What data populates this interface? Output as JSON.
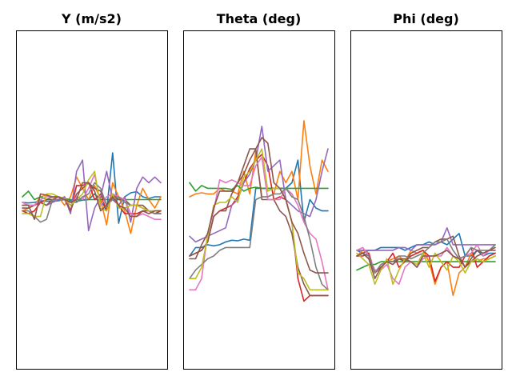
{
  "chart_data": [
    {
      "type": "line",
      "title": "Y (m/s2)",
      "x": [
        0,
        1,
        2,
        3,
        4,
        5,
        6,
        7,
        8,
        9,
        10,
        11,
        12,
        13,
        14,
        15,
        16,
        17,
        18,
        19,
        20,
        21,
        22,
        23
      ],
      "ylim": [
        -3,
        3
      ],
      "series": [
        {
          "values": [
            -0.05,
            -0.06,
            -0.05,
            -0.02,
            -0.03,
            -0.03,
            -0.02,
            0.0,
            -0.02,
            -0.03,
            -0.01,
            0.0,
            0.1,
            0.0,
            -0.2,
            0.83,
            -0.42,
            0.05,
            0.12,
            0.14,
            0.05,
            0.02,
            0.05,
            0.05
          ]
        },
        {
          "values": [
            -0.2,
            -0.15,
            -0.1,
            0.05,
            0.08,
            0.04,
            0.05,
            -0.1,
            0.05,
            0.4,
            0.2,
            0.0,
            0.25,
            0.0,
            -0.45,
            0.3,
            0.05,
            -0.2,
            -0.6,
            -0.1,
            0.2,
            0.0,
            -0.15,
            0.05
          ]
        },
        {
          "values": [
            0.05,
            0.15,
            0.0,
            0.05,
            0.0,
            0.05,
            0.05,
            0.02,
            0.0,
            0.0,
            0.0,
            0.0,
            0.0,
            0.0,
            0.0,
            0.0,
            0.0,
            0.0,
            0.0,
            0.0,
            0.0,
            0.0,
            0.0,
            0.0
          ]
        },
        {
          "values": [
            -0.2,
            -0.25,
            -0.2,
            -0.05,
            0.0,
            0.0,
            0.0,
            0.05,
            -0.2,
            0.25,
            0.25,
            0.3,
            0.0,
            0.1,
            -0.2,
            0.1,
            -0.1,
            -0.25,
            -0.25,
            -0.25,
            -0.2,
            -0.2,
            -0.25,
            -0.2
          ]
        },
        {
          "values": [
            -0.1,
            -0.1,
            -0.1,
            -0.05,
            -0.1,
            -0.05,
            0.0,
            0.05,
            -0.25,
            0.5,
            0.7,
            -0.55,
            -0.15,
            0.05,
            0.5,
            0.0,
            -0.1,
            0.05,
            -0.4,
            0.2,
            0.4,
            0.3,
            0.4,
            0.3
          ]
        },
        {
          "values": [
            -0.15,
            -0.15,
            -0.1,
            -0.05,
            -0.1,
            0.0,
            0.05,
            0.0,
            -0.2,
            0.1,
            0.2,
            0.3,
            0.2,
            0.15,
            -0.1,
            0.1,
            0.0,
            0.0,
            -0.1,
            -0.1,
            -0.1,
            -0.2,
            -0.25,
            -0.25
          ]
        },
        {
          "values": [
            -0.05,
            -0.1,
            -0.1,
            0.0,
            0.05,
            0.05,
            0.05,
            0.0,
            -0.1,
            0.05,
            0.0,
            0.2,
            0.45,
            -0.1,
            0.05,
            0.1,
            0.05,
            0.0,
            -0.25,
            -0.3,
            -0.25,
            -0.3,
            -0.35,
            -0.35
          ]
        },
        {
          "values": [
            -0.2,
            -0.2,
            -0.3,
            -0.4,
            -0.35,
            0.0,
            0.0,
            0.0,
            -0.05,
            -0.05,
            0.05,
            0.1,
            0.3,
            0.2,
            -0.1,
            0.0,
            0.05,
            -0.05,
            -0.1,
            -0.1,
            -0.15,
            -0.2,
            -0.25,
            -0.25
          ]
        },
        {
          "values": [
            -0.25,
            -0.25,
            -0.3,
            -0.3,
            0.1,
            0.1,
            0.05,
            0.02,
            -0.1,
            0.0,
            0.1,
            0.35,
            0.5,
            -0.15,
            -0.2,
            0.1,
            -0.15,
            -0.15,
            -0.1,
            -0.1,
            -0.15,
            -0.2,
            -0.2,
            -0.2
          ]
        },
        {
          "values": [
            -0.1,
            -0.1,
            -0.35,
            0.1,
            0.08,
            0.05,
            0.05,
            0.0,
            -0.05,
            0.0,
            0.3,
            0.3,
            0.15,
            -0.2,
            -0.1,
            0.05,
            -0.1,
            -0.15,
            -0.3,
            -0.3,
            -0.2,
            -0.25,
            -0.2,
            -0.2
          ]
        }
      ]
    },
    {
      "type": "line",
      "title": "Theta (deg)",
      "x": [
        0,
        1,
        2,
        3,
        4,
        5,
        6,
        7,
        8,
        9,
        10,
        11,
        12,
        13,
        14,
        15,
        16,
        17,
        18,
        19,
        20,
        21,
        22,
        23
      ],
      "ylim": [
        -3,
        3
      ],
      "series": [
        {
          "values": [
            -1.0,
            -0.85,
            -0.85,
            -0.8,
            -0.82,
            -0.8,
            -0.75,
            -0.72,
            -0.73,
            -0.7,
            -0.72,
            0.2,
            0.2,
            0.2,
            0.2,
            0.2,
            0.2,
            0.3,
            0.7,
            -0.4,
            0.0,
            -0.15,
            -0.2,
            -0.2
          ]
        },
        {
          "values": [
            0.05,
            0.1,
            0.12,
            0.1,
            0.1,
            0.2,
            0.15,
            0.15,
            0.1,
            0.5,
            0.1,
            0.85,
            0.05,
            0.05,
            0.1,
            0.5,
            0.3,
            0.5,
            0.0,
            1.4,
            0.6,
            0.1,
            0.7,
            0.5
          ]
        },
        {
          "values": [
            0.3,
            0.15,
            0.25,
            0.2,
            0.2,
            0.2,
            0.2,
            0.18,
            0.25,
            0.15,
            0.2,
            0.22,
            0.2,
            0.2,
            0.2,
            0.2,
            0.2,
            0.2,
            0.2,
            0.2,
            0.2,
            0.2,
            0.2,
            0.2
          ]
        },
        {
          "values": [
            -1.0,
            -0.95,
            -0.9,
            -0.75,
            -0.3,
            -0.2,
            -0.15,
            -0.1,
            0.05,
            0.3,
            0.55,
            0.7,
            0.8,
            0.6,
            0.0,
            0.05,
            0.0,
            -0.4,
            -1.4,
            -1.8,
            -1.7,
            -1.7,
            -1.7,
            -1.7
          ]
        },
        {
          "values": [
            -0.65,
            -0.75,
            -0.7,
            -0.65,
            -0.6,
            -0.55,
            -0.5,
            -0.1,
            0.0,
            0.3,
            0.45,
            0.7,
            1.3,
            0.5,
            0.6,
            0.7,
            0.0,
            -0.1,
            -0.2,
            -0.25,
            -0.3,
            0.0,
            0.5,
            0.9
          ]
        },
        {
          "values": [
            -1.0,
            -0.95,
            -0.9,
            -0.75,
            -0.3,
            -0.2,
            -0.2,
            0.1,
            0.3,
            0.6,
            0.9,
            0.9,
            0.0,
            0.0,
            0.0,
            -0.2,
            -0.3,
            -0.6,
            -1.2,
            -1.5,
            -1.7,
            -1.7,
            -1.7,
            -1.7
          ]
        },
        {
          "values": [
            -1.6,
            -1.6,
            -1.4,
            -0.6,
            -0.2,
            0.35,
            0.3,
            0.35,
            0.3,
            0.25,
            0.25,
            0.6,
            0.75,
            0.0,
            0.0,
            0.0,
            0.2,
            0.1,
            -0.1,
            -0.4,
            -0.6,
            -0.7,
            -1.1,
            -1.6
          ]
        },
        {
          "values": [
            -1.4,
            -1.25,
            -1.15,
            -1.05,
            -1.0,
            -0.9,
            -0.85,
            -0.85,
            -0.85,
            -0.85,
            -0.85,
            0.0,
            0.05,
            0.05,
            0.1,
            0.1,
            0.2,
            0.05,
            0.0,
            -0.3,
            -0.7,
            -1.2,
            -1.5,
            -1.6
          ]
        },
        {
          "values": [
            -1.4,
            -1.4,
            -1.2,
            -0.65,
            -0.1,
            -0.05,
            -0.05,
            0.05,
            -0.05,
            0.4,
            0.5,
            0.7,
            0.9,
            0.15,
            0.2,
            0.2,
            0.0,
            -0.4,
            -1.3,
            -1.4,
            -1.6,
            -1.6,
            -1.6,
            -1.6
          ]
        },
        {
          "values": [
            -1.05,
            -1.05,
            -0.8,
            -0.6,
            -0.15,
            0.15,
            0.15,
            0.15,
            0.3,
            0.45,
            0.7,
            0.9,
            1.1,
            1.0,
            0.3,
            0.2,
            0.0,
            -0.4,
            -0.6,
            -0.95,
            -1.25,
            -1.3,
            -1.3,
            -1.3
          ]
        }
      ]
    },
    {
      "type": "line",
      "title": "Phi (deg)",
      "x": [
        0,
        1,
        2,
        3,
        4,
        5,
        6,
        7,
        8,
        9,
        10,
        11,
        12,
        13,
        14,
        15,
        16,
        17,
        18,
        19,
        20,
        21,
        22,
        23
      ],
      "ylim": [
        -3,
        3
      ],
      "series": [
        {
          "values": [
            -0.9,
            -0.95,
            -0.9,
            -0.9,
            -0.85,
            -0.85,
            -0.85,
            -0.85,
            -0.9,
            -0.85,
            -0.8,
            -0.8,
            -0.75,
            -0.8,
            -0.75,
            -0.8,
            -0.7,
            -0.6,
            -1.0,
            -1.0,
            -0.9,
            -1.0,
            -0.95,
            -0.95
          ]
        },
        {
          "values": [
            -1.0,
            -0.9,
            -0.95,
            -1.3,
            -1.2,
            -1.1,
            -1.05,
            -1.0,
            -1.1,
            -0.9,
            -0.95,
            -0.9,
            -1.1,
            -1.5,
            -1.2,
            -1.1,
            -1.7,
            -1.3,
            -1.2,
            -0.95,
            -1.1,
            -1.05,
            -1.05,
            -1.0
          ]
        },
        {
          "values": [
            -1.25,
            -1.2,
            -1.15,
            -1.15,
            -1.1,
            -1.1,
            -1.1,
            -1.1,
            -1.1,
            -1.1,
            -1.1,
            -1.1,
            -1.1,
            -1.1,
            -1.1,
            -1.1,
            -1.1,
            -1.1,
            -1.1,
            -1.1,
            -1.1,
            -1.1,
            -1.1,
            -1.1
          ]
        },
        {
          "values": [
            -1.0,
            -1.0,
            -0.95,
            -1.3,
            -1.2,
            -1.1,
            -0.95,
            -1.2,
            -1.1,
            -1.0,
            -0.95,
            -0.9,
            -1.0,
            -1.45,
            -1.2,
            -1.1,
            -1.2,
            -1.2,
            -1.0,
            -0.85,
            -1.2,
            -1.1,
            -1.0,
            -0.95
          ]
        },
        {
          "values": [
            -0.9,
            -0.9,
            -0.9,
            -0.9,
            -0.9,
            -0.9,
            -0.9,
            -0.85,
            -0.85,
            -0.9,
            -0.8,
            -0.8,
            -0.8,
            -0.8,
            -0.75,
            -0.5,
            -0.8,
            -0.8,
            -0.8,
            -0.8,
            -0.8,
            -0.8,
            -0.8,
            -0.8
          ]
        },
        {
          "values": [
            -1.0,
            -0.95,
            -1.05,
            -1.3,
            -1.2,
            -1.1,
            -1.1,
            -1.05,
            -1.1,
            -0.95,
            -0.9,
            -0.85,
            -0.85,
            -0.75,
            -0.7,
            -0.7,
            -0.65,
            -1.0,
            -1.2,
            -1.1,
            -1.0,
            -0.95,
            -0.9,
            -0.85
          ]
        },
        {
          "values": [
            -0.9,
            -0.85,
            -1.0,
            -1.25,
            -1.25,
            -1.15,
            -1.4,
            -1.5,
            -1.2,
            -1.1,
            -1.2,
            -1.05,
            -1.0,
            -1.0,
            -1.0,
            -0.85,
            -1.0,
            -1.05,
            -1.0,
            -0.95,
            -0.8,
            -1.0,
            -0.9,
            -0.8
          ]
        },
        {
          "values": [
            -1.0,
            -0.95,
            -1.0,
            -1.3,
            -1.15,
            -1.1,
            -1.1,
            -1.0,
            -1.0,
            -1.05,
            -1.0,
            -0.95,
            -0.85,
            -0.75,
            -0.75,
            -0.7,
            -0.9,
            -1.05,
            -1.0,
            -0.85,
            -0.9,
            -0.9,
            -0.9,
            -0.8
          ]
        },
        {
          "values": [
            -0.95,
            -1.05,
            -1.15,
            -1.5,
            -1.25,
            -1.05,
            -1.5,
            -1.25,
            -1.05,
            -1.1,
            -1.15,
            -0.95,
            -1.2,
            -0.95,
            -1.1,
            -1.25,
            -1.0,
            -1.1,
            -1.3,
            -1.1,
            -1.05,
            -1.1,
            -1.05,
            -1.0
          ]
        },
        {
          "values": [
            -1.0,
            -0.95,
            -1.05,
            -1.4,
            -1.2,
            -1.1,
            -1.15,
            -1.05,
            -1.05,
            -1.1,
            -1.2,
            -1.0,
            -1.0,
            -1.0,
            -0.95,
            -0.9,
            -1.0,
            -1.05,
            -1.2,
            -1.05,
            -0.9,
            -0.95,
            -0.9,
            -0.9
          ]
        }
      ]
    }
  ],
  "colors": [
    "#1f77b4",
    "#ff7f0e",
    "#2ca02c",
    "#d62728",
    "#9467bd",
    "#8c564b",
    "#e377c2",
    "#7f7f7f",
    "#bcbd22",
    "#8c564b"
  ]
}
